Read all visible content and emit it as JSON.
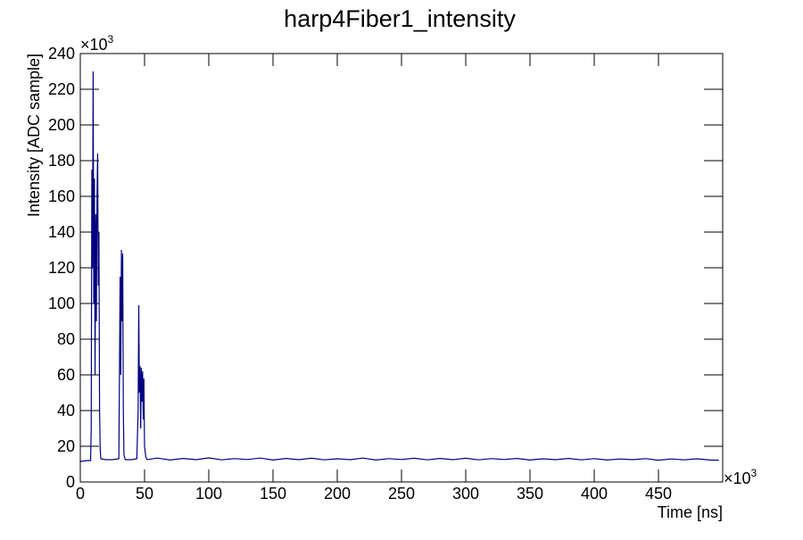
{
  "chart_data": {
    "type": "line",
    "title": "harp4Fiber1_intensity",
    "x_label": "Time [ns]",
    "y_label": "Intensity [ADC sample]",
    "x_multiplier": {
      "base": "×10",
      "exponent": "3"
    },
    "y_multiplier": {
      "base": "×10",
      "exponent": "3"
    },
    "xlim": [
      0,
      500
    ],
    "ylim": [
      0,
      240
    ],
    "xticks": [
      0,
      50,
      100,
      150,
      200,
      250,
      300,
      350,
      400,
      450
    ],
    "yticks": [
      0,
      20,
      40,
      60,
      80,
      100,
      120,
      140,
      160,
      180,
      200,
      220,
      240
    ],
    "x": [
      0,
      5,
      8,
      8.5,
      9,
      9.5,
      10,
      10.5,
      11,
      11.5,
      12,
      12.5,
      13,
      13.5,
      14,
      14.5,
      15,
      15.5,
      16,
      20,
      25,
      30,
      31,
      31.5,
      32,
      32.5,
      33,
      33.5,
      34,
      35,
      40,
      44,
      45,
      45.5,
      46,
      46.5,
      47,
      47.5,
      48,
      48.5,
      49,
      49.5,
      50,
      51,
      52,
      60,
      70,
      80,
      90,
      100,
      110,
      120,
      130,
      140,
      150,
      160,
      170,
      180,
      190,
      200,
      210,
      220,
      230,
      240,
      250,
      260,
      270,
      280,
      290,
      300,
      310,
      320,
      330,
      340,
      350,
      360,
      370,
      380,
      390,
      400,
      410,
      420,
      430,
      440,
      450,
      460,
      470,
      480,
      490,
      497
    ],
    "series": [
      {
        "name": "intensity",
        "color": "#000080",
        "values": [
          11.5,
          12,
          12,
          30,
          175,
          120,
          230,
          100,
          170,
          60,
          150,
          90,
          160,
          184,
          110,
          140,
          40,
          18,
          13,
          12.5,
          12.5,
          13,
          115,
          60,
          130,
          90,
          128,
          40,
          15,
          12.5,
          12.5,
          13,
          40,
          99,
          50,
          65,
          30,
          64,
          45,
          62,
          35,
          58,
          20,
          14,
          12.5,
          13.4,
          12.3,
          13.2,
          12.5,
          13.5,
          12.4,
          13.1,
          12.6,
          13.4,
          12.3,
          13.2,
          12.5,
          13.3,
          12.4,
          13,
          12.5,
          13.4,
          12.3,
          13.1,
          12.6,
          13.3,
          12.4,
          13.2,
          12.5,
          13.3,
          12.4,
          13.1,
          12.6,
          13.2,
          12.3,
          13,
          12.5,
          13.2,
          12.4,
          13.1,
          12.3,
          12.9,
          12.5,
          13.1,
          12.2,
          12.9,
          12.4,
          13,
          12.3,
          12.2
        ]
      }
    ]
  }
}
